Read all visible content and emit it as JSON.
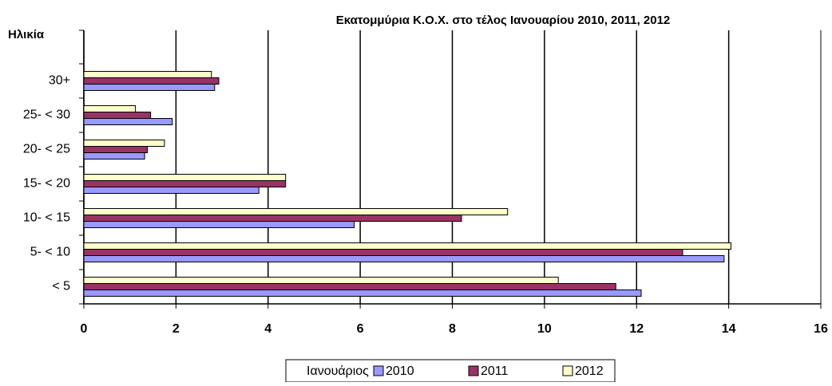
{
  "chart_data": {
    "type": "bar",
    "orientation": "horizontal",
    "title": "Εκατομμύρια Κ.Ο.Χ. στο τέλος Ιανουαρίου 2010, 2011, 2012",
    "y_label": "Ηλικία",
    "legend_title": "Ιανουάριος",
    "categories": [
      "< 5",
      "5- < 10",
      "10- < 15",
      "15- < 20",
      "20- < 25",
      "25- < 30",
      "30+"
    ],
    "series": [
      {
        "name": "2010",
        "color": "#9999ff",
        "values": [
          12.1,
          13.9,
          5.87,
          3.8,
          1.32,
          1.92,
          2.84
        ]
      },
      {
        "name": "2011",
        "color": "#993366",
        "values": [
          11.55,
          13.0,
          8.2,
          4.38,
          1.38,
          1.45,
          2.93
        ]
      },
      {
        "name": "2012",
        "color": "#ffffcc",
        "values": [
          10.3,
          14.05,
          9.2,
          4.38,
          1.75,
          1.12,
          2.77
        ]
      }
    ],
    "xlim": [
      0,
      16
    ],
    "xticks": [
      0,
      2,
      4,
      6,
      8,
      10,
      12,
      14,
      16
    ],
    "grid": true
  }
}
